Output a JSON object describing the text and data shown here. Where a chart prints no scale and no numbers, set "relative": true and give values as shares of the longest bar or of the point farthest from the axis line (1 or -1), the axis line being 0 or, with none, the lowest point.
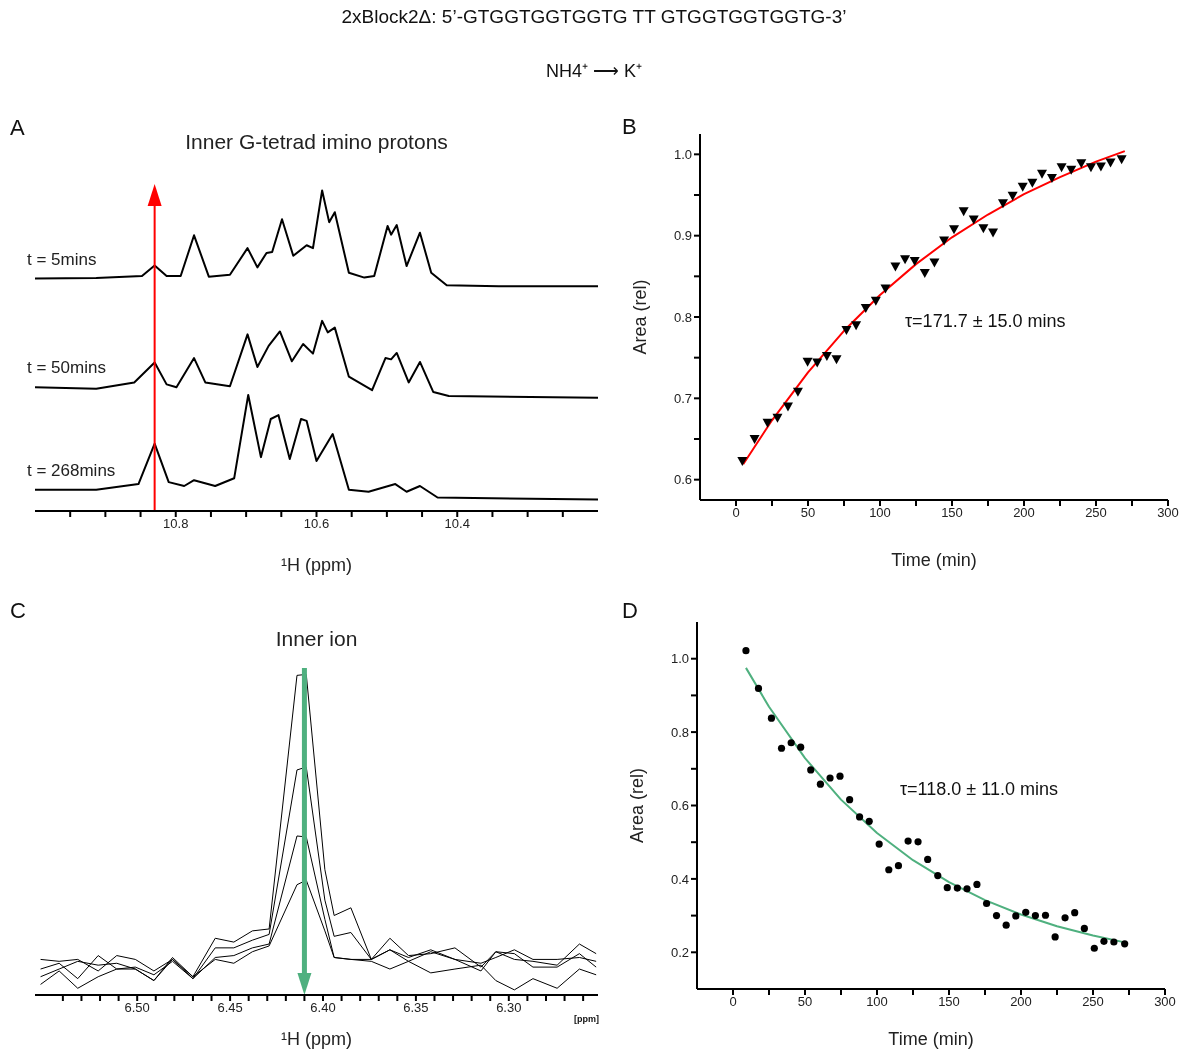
{
  "chart_data": [
    {
      "type": "line",
      "relative": true,
      "title": "Inner G-tetrad imino protons",
      "xlabel": "¹H (ppm)",
      "xlim": [
        11.0,
        10.2
      ],
      "xticks": [
        {
          "value": 10.95,
          "label": null
        },
        {
          "value": 10.9,
          "label": null
        },
        {
          "value": 10.85,
          "label": null
        },
        10.8,
        {
          "value": 10.75,
          "label": null
        },
        {
          "value": 10.7,
          "label": null
        },
        {
          "value": 10.65,
          "label": null
        },
        10.6,
        {
          "value": 10.55,
          "label": null
        },
        {
          "value": 10.5,
          "label": null
        },
        {
          "value": 10.45,
          "label": null
        },
        10.4,
        {
          "value": 10.35,
          "label": null
        },
        {
          "value": 10.3,
          "label": null
        },
        {
          "value": 10.25,
          "label": null
        }
      ],
      "annotations": [
        "2xBlock2Δ: 5’-GTGGTGGTGGTG TT GTGGTGGTGGTG-3’",
        "NH4⁺ ⟶ K⁺",
        "A"
      ],
      "ref_lines": [
        {
          "axis": "x",
          "value": 10.83,
          "color": "#ff0000"
        }
      ],
      "series": [
        {
          "name": "t = 5mins",
          "color": "#000000",
          "x": [
            11.0,
            10.913,
            10.848,
            10.83,
            10.813,
            10.793,
            10.774,
            10.753,
            10.723,
            10.698,
            10.684,
            10.671,
            10.663,
            10.649,
            10.633,
            10.614,
            10.605,
            10.592,
            10.582,
            10.574,
            10.554,
            10.532,
            10.518,
            10.499,
            10.494,
            10.486,
            10.472,
            10.453,
            10.437,
            10.415,
            10.341,
            10.2
          ],
          "values": [
            0.725,
            0.727,
            0.733,
            0.766,
            0.733,
            0.733,
            0.86,
            0.731,
            0.737,
            0.82,
            0.76,
            0.805,
            0.808,
            0.91,
            0.796,
            0.829,
            0.82,
            1.0,
            0.901,
            0.932,
            0.743,
            0.728,
            0.733,
            0.889,
            0.862,
            0.892,
            0.764,
            0.868,
            0.743,
            0.704,
            0.701,
            0.701
          ]
        },
        {
          "name": "t = 50mins",
          "color": "#000000",
          "x": [
            11.0,
            10.913,
            10.859,
            10.83,
            10.813,
            10.799,
            10.774,
            10.758,
            10.723,
            10.698,
            10.684,
            10.668,
            10.652,
            10.635,
            10.619,
            10.605,
            10.592,
            10.584,
            10.574,
            10.554,
            10.521,
            10.502,
            10.494,
            10.486,
            10.469,
            10.453,
            10.434,
            10.412,
            10.2
          ],
          "values": [
            0.386,
            0.381,
            0.401,
            0.463,
            0.395,
            0.386,
            0.477,
            0.401,
            0.389,
            0.551,
            0.449,
            0.515,
            0.56,
            0.467,
            0.521,
            0.491,
            0.593,
            0.557,
            0.572,
            0.419,
            0.377,
            0.477,
            0.473,
            0.493,
            0.401,
            0.465,
            0.371,
            0.359,
            0.353
          ]
        },
        {
          "name": "t = 268mins",
          "color": "#000000",
          "x": [
            11.0,
            10.913,
            10.853,
            10.83,
            10.81,
            10.788,
            10.774,
            10.744,
            10.717,
            10.697,
            10.679,
            10.665,
            10.654,
            10.638,
            10.622,
            10.614,
            10.6,
            10.577,
            10.554,
            10.526,
            10.488,
            10.472,
            10.453,
            10.428,
            10.2
          ],
          "values": [
            0.066,
            0.066,
            0.084,
            0.21,
            0.09,
            0.078,
            0.096,
            0.078,
            0.102,
            0.362,
            0.168,
            0.287,
            0.299,
            0.162,
            0.287,
            0.281,
            0.156,
            0.24,
            0.066,
            0.06,
            0.084,
            0.06,
            0.078,
            0.042,
            0.036
          ]
        }
      ]
    },
    {
      "type": "scatter",
      "xlabel": "Time (min)",
      "ylabel": "Area (rel)",
      "xlim": [
        -25,
        300
      ],
      "ylim": [
        0.575,
        1.025
      ],
      "xticks": [
        0,
        {
          "value": 25,
          "label": null
        },
        50,
        {
          "value": 75,
          "label": null
        },
        100,
        {
          "value": 125,
          "label": null
        },
        150,
        {
          "value": 175,
          "label": null
        },
        200,
        {
          "value": 225,
          "label": null
        },
        250,
        {
          "value": 275,
          "label": null
        },
        300
      ],
      "yticks": [
        0.6,
        {
          "value": 0.65,
          "label": null
        },
        0.7,
        {
          "value": 0.75,
          "label": null
        },
        0.8,
        {
          "value": 0.85,
          "label": null
        },
        0.9,
        {
          "value": 0.95,
          "label": null
        },
        {
          "value": 1,
          "label": "1.0"
        }
      ],
      "annotations": [
        "B",
        "τ=171.7 ± 15.0 mins"
      ],
      "series": [
        {
          "marker": "triangle",
          "color": "#000000",
          "x": [
            4.4,
            12.9,
            21.9,
            28.8,
            36.1,
            43.0,
            49.7,
            56.4,
            63.1,
            69.8,
            76.7,
            83.4,
            90.1,
            97.1,
            103.8,
            110.7,
            117.4,
            124.1,
            131.1,
            137.8,
            144.5,
            151.4,
            158.1,
            165.1,
            171.8,
            178.5,
            185.4,
            192.1,
            199.1,
            205.8,
            212.5,
            219.4,
            226.1,
            232.8,
            239.8,
            246.5,
            253.4,
            260.1,
            267.8
          ],
          "values": [
            0.623,
            0.65,
            0.67,
            0.676,
            0.69,
            0.708,
            0.745,
            0.744,
            0.752,
            0.748,
            0.784,
            0.79,
            0.811,
            0.82,
            0.835,
            0.862,
            0.871,
            0.869,
            0.854,
            0.867,
            0.894,
            0.908,
            0.93,
            0.92,
            0.909,
            0.904,
            0.94,
            0.949,
            0.96,
            0.965,
            0.976,
            0.971,
            0.984,
            0.981,
            0.989,
            0.984,
            0.985,
            0.99,
            0.994
          ]
        },
        {
          "type": "line",
          "marker": "none",
          "color": "#ff0000",
          "x": [
            5,
            25,
            50,
            75,
            100,
            125,
            150,
            175,
            200,
            225,
            250,
            270
          ],
          "values": [
            0.619,
            0.673,
            0.732,
            0.783,
            0.827,
            0.865,
            0.898,
            0.926,
            0.951,
            0.972,
            0.991,
            1.004
          ]
        }
      ]
    },
    {
      "type": "line",
      "relative": true,
      "title": "Inner ion",
      "xlabel": "¹H (ppm)",
      "xlim": [
        6.555,
        6.252
      ],
      "xticks": [
        {
          "value": 6.54,
          "label": null
        },
        {
          "value": 6.53,
          "label": null
        },
        {
          "value": 6.52,
          "label": null
        },
        {
          "value": 6.51,
          "label": null
        },
        {
          "value": 6.5,
          "label": "6.50"
        },
        {
          "value": 6.49,
          "label": null
        },
        {
          "value": 6.48,
          "label": null
        },
        {
          "value": 6.47,
          "label": null
        },
        {
          "value": 6.46,
          "label": null
        },
        {
          "value": 6.45,
          "label": "6.45"
        },
        {
          "value": 6.44,
          "label": null
        },
        {
          "value": 6.43,
          "label": null
        },
        {
          "value": 6.42,
          "label": null
        },
        {
          "value": 6.41,
          "label": null
        },
        {
          "value": 6.4,
          "label": "6.40"
        },
        {
          "value": 6.39,
          "label": null
        },
        {
          "value": 6.38,
          "label": null
        },
        {
          "value": 6.37,
          "label": null
        },
        {
          "value": 6.36,
          "label": null
        },
        {
          "value": 6.35,
          "label": "6.35"
        },
        {
          "value": 6.34,
          "label": null
        },
        {
          "value": 6.33,
          "label": null
        },
        {
          "value": 6.32,
          "label": null
        },
        {
          "value": 6.31,
          "label": null
        },
        {
          "value": 6.3,
          "label": "6.30"
        },
        {
          "value": 6.29,
          "label": null
        },
        {
          "value": 6.28,
          "label": null
        },
        {
          "value": 6.27,
          "label": null
        },
        {
          "value": 6.26,
          "label": null
        }
      ],
      "annotations": [
        "C",
        "[ppm]"
      ],
      "ref_lines": [
        {
          "axis": "x",
          "value": 6.41,
          "color": "#4fb07f"
        }
      ],
      "x": [
        6.552,
        6.542,
        6.532,
        6.521,
        6.511,
        6.501,
        6.491,
        6.481,
        6.47,
        6.458,
        6.448,
        6.438,
        6.429,
        6.414,
        6.409,
        6.399,
        6.394,
        6.385,
        6.374,
        6.364,
        6.354,
        6.342,
        6.329,
        6.315,
        6.307,
        6.297,
        6.287,
        6.274,
        6.262,
        6.253
      ],
      "series": [
        {
          "color": "#000000",
          "values": [
            0.111,
            0.105,
            0.111,
            0.075,
            0.123,
            0.111,
            0.075,
            0.111,
            0.057,
            0.177,
            0.165,
            0.2,
            0.206,
            0.997,
            1.0,
            0.391,
            0.248,
            0.272,
            0.111,
            0.177,
            0.123,
            0.129,
            0.147,
            0.087,
            0.135,
            0.111,
            0.105,
            0.093,
            0.159,
            0.129
          ]
        },
        {
          "color": "#000000",
          "values": [
            0.081,
            0.099,
            0.051,
            0.123,
            0.081,
            0.087,
            0.063,
            0.105,
            0.051,
            0.147,
            0.147,
            0.171,
            0.189,
            0.702,
            0.711,
            0.296,
            0.183,
            0.195,
            0.111,
            0.141,
            0.117,
            0.141,
            0.111,
            0.099,
            0.117,
            0.141,
            0.111,
            0.111,
            0.117,
            0.105
          ]
        },
        {
          "color": "#000000",
          "values": [
            0.033,
            0.075,
            0.021,
            0.057,
            0.081,
            0.081,
            0.045,
            0.111,
            0.051,
            0.117,
            0.123,
            0.147,
            0.159,
            0.496,
            0.493,
            0.236,
            0.117,
            0.111,
            0.111,
            0.141,
            0.105,
            0.135,
            0.111,
            0.075,
            0.135,
            0.129,
            0.087,
            0.087,
            0.129,
            0.087
          ]
        },
        {
          "color": "#000000",
          "values": [
            0.057,
            0.081,
            0.105,
            0.093,
            0.099,
            0.081,
            0.045,
            0.117,
            0.057,
            0.111,
            0.099,
            0.135,
            0.153,
            0.344,
            0.358,
            0.2,
            0.117,
            0.111,
            0.105,
            0.081,
            0.105,
            0.069,
            0.081,
            0.093,
            0.045,
            0.016,
            0.051,
            0.021,
            0.081,
            0.063
          ]
        }
      ]
    },
    {
      "type": "scatter",
      "xlabel": "Time (min)",
      "ylabel": "Area (rel)",
      "xlim": [
        -25,
        300
      ],
      "ylim": [
        0.1,
        1.1
      ],
      "xticks": [
        0,
        {
          "value": 25,
          "label": null
        },
        50,
        {
          "value": 75,
          "label": null
        },
        100,
        {
          "value": 125,
          "label": null
        },
        150,
        {
          "value": 175,
          "label": null
        },
        200,
        {
          "value": 225,
          "label": null
        },
        250,
        {
          "value": 275,
          "label": null
        },
        300
      ],
      "yticks": [
        0.2,
        {
          "value": 0.3,
          "label": null
        },
        0.4,
        {
          "value": 0.5,
          "label": null
        },
        0.6,
        {
          "value": 0.7,
          "label": null
        },
        0.8,
        {
          "value": 0.9,
          "label": null
        },
        {
          "value": 1,
          "label": "1.0"
        }
      ],
      "annotations": [
        "D",
        "τ=118.0 ± 11.0 mins"
      ],
      "series": [
        {
          "marker": "circle",
          "color": "#000000",
          "x": [
            9.0,
            17.7,
            26.7,
            33.7,
            40.4,
            47.0,
            54.0,
            60.7,
            67.4,
            74.3,
            81.0,
            87.9,
            94.6,
            101.5,
            108.2,
            114.9,
            121.6,
            128.5,
            135.2,
            142.2,
            148.8,
            155.8,
            162.5,
            169.4,
            176.1,
            183.0,
            189.7,
            196.4,
            203.3,
            210.0,
            217.0,
            223.7,
            230.6,
            237.3,
            244.0,
            250.9,
            257.6,
            264.5,
            272.0
          ],
          "values": [
            1.022,
            0.919,
            0.838,
            0.756,
            0.771,
            0.759,
            0.697,
            0.658,
            0.675,
            0.68,
            0.616,
            0.569,
            0.557,
            0.495,
            0.425,
            0.436,
            0.503,
            0.501,
            0.453,
            0.409,
            0.376,
            0.375,
            0.373,
            0.385,
            0.333,
            0.3,
            0.274,
            0.299,
            0.309,
            0.3,
            0.301,
            0.242,
            0.294,
            0.308,
            0.265,
            0.211,
            0.23,
            0.228,
            0.223
          ]
        },
        {
          "type": "line",
          "marker": "none",
          "color": "#4fb07f",
          "x": [
            9,
            25,
            50,
            75,
            100,
            125,
            150,
            175,
            200,
            225,
            250,
            272
          ],
          "values": [
            0.975,
            0.869,
            0.729,
            0.616,
            0.525,
            0.451,
            0.391,
            0.342,
            0.303,
            0.271,
            0.246,
            0.227
          ]
        }
      ]
    }
  ]
}
